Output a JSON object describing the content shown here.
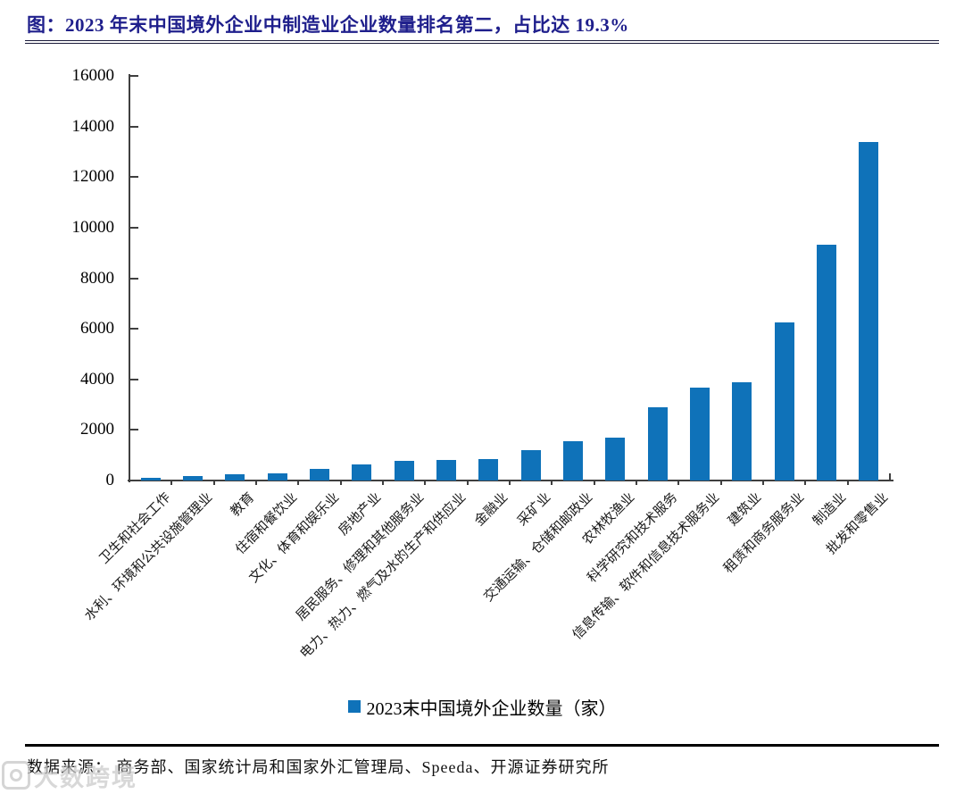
{
  "title": "图：2023 年末中国境外企业中制造业企业数量排名第二，占比达 19.3%",
  "chart_data": {
    "type": "bar",
    "title": "2023 年末中国境外企业中制造业企业数量排名第二，占比达 19.3%",
    "categories": [
      "卫生和社会工作",
      "水利、环境和公共设施管理业",
      "教育",
      "住宿和餐饮业",
      "文化、体育和娱乐业",
      "房地产业",
      "居民服务、修理和其他服务业",
      "电力、热力、燃气及水的生产和供应业",
      "金融业",
      "采矿业",
      "交通运输、仓储和邮政业",
      "农林牧渔业",
      "科学研究和技术服务",
      "信息传输、软件和信息技术服务业",
      "建筑业",
      "租赁和商务服务业",
      "制造业",
      "批发和零售业"
    ],
    "values": [
      120,
      170,
      240,
      300,
      460,
      640,
      780,
      810,
      850,
      1200,
      1550,
      1680,
      2900,
      3670,
      3890,
      6250,
      9330,
      13400
    ],
    "series": [
      {
        "name": "2023末中国境外企业数量（家）",
        "values": [
          120,
          170,
          240,
          300,
          460,
          640,
          780,
          810,
          850,
          1200,
          1550,
          1680,
          2900,
          3670,
          3890,
          6250,
          9330,
          13400
        ]
      }
    ],
    "xlabel": "",
    "ylabel": "",
    "ylim": [
      0,
      16000
    ],
    "yticks": [
      0,
      2000,
      4000,
      6000,
      8000,
      10000,
      12000,
      14000,
      16000
    ],
    "grid": false,
    "legend_position": "bottom",
    "bar_color": "#0f72b9",
    "axis_color": "#3f3f3f"
  },
  "legend": {
    "label": "2023末中国境外企业数量（家）",
    "swatch_color": "#0f72b9"
  },
  "footer": {
    "source": "数据来源： 商务部、国家统计局和国家外汇管理局、Speeda、开源证券研究所"
  },
  "watermark": {
    "text": "大数跨境"
  },
  "colors": {
    "title": "#1f1f8c",
    "bar": "#0f72b9",
    "axis": "#3f3f3f",
    "rule": "#1b1b3a"
  }
}
